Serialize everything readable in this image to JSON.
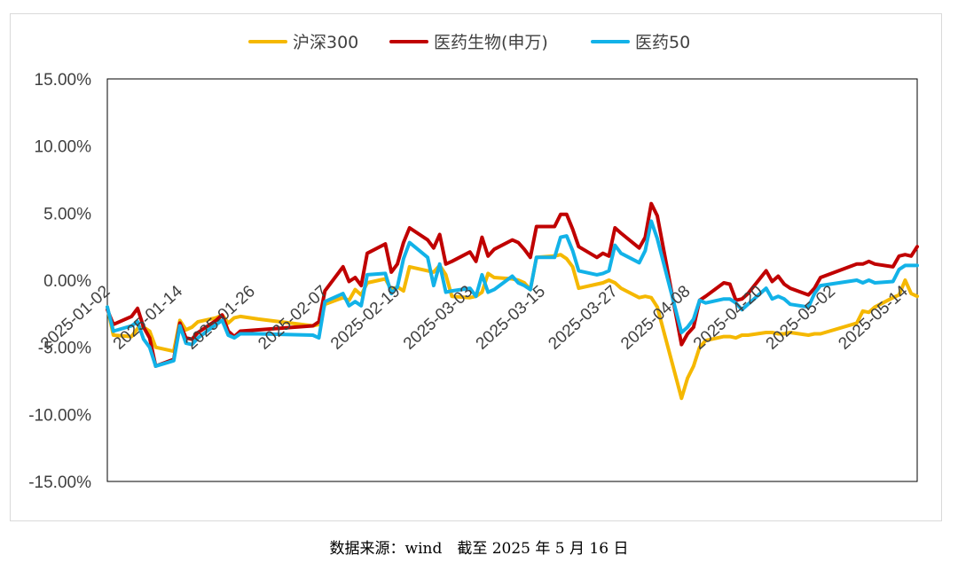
{
  "chart_data": {
    "type": "line",
    "title": "",
    "xlabel": "",
    "ylabel": "",
    "ylim": [
      -0.15,
      0.15
    ],
    "y_ticks": [
      "15.00%",
      "10.00%",
      "5.00%",
      "0.00%",
      "-5.00%",
      "-10.00%",
      "-15.00%"
    ],
    "x_ticks": [
      "2025-01-02",
      "2025-01-14",
      "2025-01-26",
      "2025-02-07",
      "2025-02-19",
      "2025-03-03",
      "2025-03-15",
      "2025-03-27",
      "2025-04-08",
      "2025-04-20",
      "2025-05-02",
      "2025-05-14"
    ],
    "x_range": [
      "2025-01-02",
      "2025-05-16"
    ],
    "grid": false,
    "legend_position": "top",
    "series": [
      {
        "name": "沪深300",
        "color": "#f5b800",
        "points": [
          [
            "2025-01-02",
            -0.02
          ],
          [
            "2025-01-03",
            -0.041
          ],
          [
            "2025-01-06",
            -0.042
          ],
          [
            "2025-01-07",
            -0.036
          ],
          [
            "2025-01-08",
            -0.035
          ],
          [
            "2025-01-09",
            -0.038
          ],
          [
            "2025-01-10",
            -0.05
          ],
          [
            "2025-01-13",
            -0.053
          ],
          [
            "2025-01-14",
            -0.03
          ],
          [
            "2025-01-15",
            -0.037
          ],
          [
            "2025-01-16",
            -0.035
          ],
          [
            "2025-01-17",
            -0.031
          ],
          [
            "2025-01-20",
            -0.028
          ],
          [
            "2025-01-21",
            -0.026
          ],
          [
            "2025-01-22",
            -0.032
          ],
          [
            "2025-01-23",
            -0.028
          ],
          [
            "2025-01-24",
            -0.027
          ],
          [
            "2025-01-27",
            -0.029
          ],
          [
            "2025-02-05",
            -0.034
          ],
          [
            "2025-02-06",
            -0.033
          ],
          [
            "2025-02-07",
            -0.018
          ],
          [
            "2025-02-10",
            -0.013
          ],
          [
            "2025-02-11",
            -0.015
          ],
          [
            "2025-02-12",
            -0.007
          ],
          [
            "2025-02-13",
            -0.011
          ],
          [
            "2025-02-14",
            -0.002
          ],
          [
            "2025-02-17",
            0.001
          ],
          [
            "2025-02-18",
            -0.007
          ],
          [
            "2025-02-19",
            -0.005
          ],
          [
            "2025-02-20",
            -0.008
          ],
          [
            "2025-02-21",
            0.01
          ],
          [
            "2025-02-24",
            0.007
          ],
          [
            "2025-02-25",
            0.006
          ],
          [
            "2025-02-26",
            0.011
          ],
          [
            "2025-02-27",
            0.004
          ],
          [
            "2025-02-28",
            -0.012
          ],
          [
            "2025-03-03",
            -0.013
          ],
          [
            "2025-03-04",
            -0.012
          ],
          [
            "2025-03-05",
            -0.009
          ],
          [
            "2025-03-06",
            0.005
          ],
          [
            "2025-03-07",
            0.002
          ],
          [
            "2025-03-10",
            0.001
          ],
          [
            "2025-03-11",
            0.0
          ],
          [
            "2025-03-12",
            -0.002
          ],
          [
            "2025-03-13",
            -0.007
          ],
          [
            "2025-03-14",
            0.017
          ],
          [
            "2025-03-17",
            0.018
          ],
          [
            "2025-03-18",
            0.019
          ],
          [
            "2025-03-19",
            0.016
          ],
          [
            "2025-03-20",
            0.01
          ],
          [
            "2025-03-21",
            -0.006
          ],
          [
            "2025-03-24",
            -0.003
          ],
          [
            "2025-03-25",
            -0.002
          ],
          [
            "2025-03-26",
            0.0
          ],
          [
            "2025-03-27",
            -0.002
          ],
          [
            "2025-03-28",
            -0.006
          ],
          [
            "2025-03-31",
            -0.013
          ],
          [
            "2025-04-01",
            -0.012
          ],
          [
            "2025-04-02",
            -0.013
          ],
          [
            "2025-04-03",
            -0.02
          ],
          [
            "2025-04-07",
            -0.088
          ],
          [
            "2025-04-08",
            -0.073
          ],
          [
            "2025-04-09",
            -0.064
          ],
          [
            "2025-04-10",
            -0.05
          ],
          [
            "2025-04-11",
            -0.045
          ],
          [
            "2025-04-14",
            -0.042
          ],
          [
            "2025-04-15",
            -0.042
          ],
          [
            "2025-04-16",
            -0.043
          ],
          [
            "2025-04-17",
            -0.041
          ],
          [
            "2025-04-18",
            -0.041
          ],
          [
            "2025-04-21",
            -0.039
          ],
          [
            "2025-04-22",
            -0.039
          ],
          [
            "2025-04-23",
            -0.04
          ],
          [
            "2025-04-24",
            -0.04
          ],
          [
            "2025-04-25",
            -0.039
          ],
          [
            "2025-04-28",
            -0.041
          ],
          [
            "2025-04-29",
            -0.04
          ],
          [
            "2025-04-30",
            -0.04
          ],
          [
            "2025-05-06",
            -0.032
          ],
          [
            "2025-05-07",
            -0.023
          ],
          [
            "2025-05-08",
            -0.024
          ],
          [
            "2025-05-09",
            -0.02
          ],
          [
            "2025-05-12",
            -0.013
          ],
          [
            "2025-05-13",
            -0.011
          ],
          [
            "2025-05-14",
            0.0
          ],
          [
            "2025-05-15",
            -0.01
          ],
          [
            "2025-05-16",
            -0.012
          ]
        ]
      },
      {
        "name": "医药生物(申万)",
        "color": "#c00000",
        "points": [
          [
            "2025-01-02",
            -0.022
          ],
          [
            "2025-01-03",
            -0.033
          ],
          [
            "2025-01-06",
            -0.027
          ],
          [
            "2025-01-07",
            -0.021
          ],
          [
            "2025-01-08",
            -0.035
          ],
          [
            "2025-01-09",
            -0.043
          ],
          [
            "2025-01-10",
            -0.064
          ],
          [
            "2025-01-13",
            -0.059
          ],
          [
            "2025-01-14",
            -0.032
          ],
          [
            "2025-01-15",
            -0.043
          ],
          [
            "2025-01-16",
            -0.044
          ],
          [
            "2025-01-17",
            -0.039
          ],
          [
            "2025-01-20",
            -0.03
          ],
          [
            "2025-01-21",
            -0.026
          ],
          [
            "2025-01-22",
            -0.038
          ],
          [
            "2025-01-23",
            -0.042
          ],
          [
            "2025-01-24",
            -0.038
          ],
          [
            "2025-01-27",
            -0.037
          ],
          [
            "2025-02-05",
            -0.034
          ],
          [
            "2025-02-06",
            -0.031
          ],
          [
            "2025-02-07",
            -0.008
          ],
          [
            "2025-02-10",
            0.01
          ],
          [
            "2025-02-11",
            -0.001
          ],
          [
            "2025-02-12",
            0.002
          ],
          [
            "2025-02-13",
            -0.004
          ],
          [
            "2025-02-14",
            0.02
          ],
          [
            "2025-02-17",
            0.027
          ],
          [
            "2025-02-18",
            0.006
          ],
          [
            "2025-02-19",
            0.012
          ],
          [
            "2025-02-20",
            0.028
          ],
          [
            "2025-02-21",
            0.039
          ],
          [
            "2025-02-24",
            0.03
          ],
          [
            "2025-02-25",
            0.024
          ],
          [
            "2025-02-26",
            0.034
          ],
          [
            "2025-02-27",
            0.012
          ],
          [
            "2025-02-28",
            0.014
          ],
          [
            "2025-03-03",
            0.021
          ],
          [
            "2025-03-04",
            0.014
          ],
          [
            "2025-03-05",
            0.032
          ],
          [
            "2025-03-06",
            0.018
          ],
          [
            "2025-03-07",
            0.023
          ],
          [
            "2025-03-10",
            0.03
          ],
          [
            "2025-03-11",
            0.028
          ],
          [
            "2025-03-12",
            0.023
          ],
          [
            "2025-03-13",
            0.017
          ],
          [
            "2025-03-14",
            0.04
          ],
          [
            "2025-03-17",
            0.04
          ],
          [
            "2025-03-18",
            0.049
          ],
          [
            "2025-03-19",
            0.049
          ],
          [
            "2025-03-20",
            0.038
          ],
          [
            "2025-03-21",
            0.025
          ],
          [
            "2025-03-24",
            0.017
          ],
          [
            "2025-03-25",
            0.02
          ],
          [
            "2025-03-26",
            0.018
          ],
          [
            "2025-03-27",
            0.039
          ],
          [
            "2025-03-28",
            0.035
          ],
          [
            "2025-03-31",
            0.024
          ],
          [
            "2025-04-01",
            0.032
          ],
          [
            "2025-04-02",
            0.057
          ],
          [
            "2025-04-03",
            0.048
          ],
          [
            "2025-04-07",
            -0.048
          ],
          [
            "2025-04-08",
            -0.04
          ],
          [
            "2025-04-09",
            -0.035
          ],
          [
            "2025-04-10",
            -0.015
          ],
          [
            "2025-04-11",
            -0.012
          ],
          [
            "2025-04-14",
            -0.002
          ],
          [
            "2025-04-15",
            -0.003
          ],
          [
            "2025-04-16",
            -0.015
          ],
          [
            "2025-04-17",
            -0.014
          ],
          [
            "2025-04-18",
            -0.01
          ],
          [
            "2025-04-21",
            0.007
          ],
          [
            "2025-04-22",
            -0.001
          ],
          [
            "2025-04-23",
            0.003
          ],
          [
            "2025-04-24",
            -0.003
          ],
          [
            "2025-04-25",
            -0.006
          ],
          [
            "2025-04-28",
            -0.011
          ],
          [
            "2025-04-29",
            -0.006
          ],
          [
            "2025-04-30",
            0.002
          ],
          [
            "2025-05-06",
            0.012
          ],
          [
            "2025-05-07",
            0.012
          ],
          [
            "2025-05-08",
            0.014
          ],
          [
            "2025-05-09",
            0.012
          ],
          [
            "2025-05-12",
            0.01
          ],
          [
            "2025-05-13",
            0.018
          ],
          [
            "2025-05-14",
            0.019
          ],
          [
            "2025-05-15",
            0.018
          ],
          [
            "2025-05-16",
            0.025
          ]
        ]
      },
      {
        "name": "医药50",
        "color": "#12b2e8",
        "points": [
          [
            "2025-01-02",
            -0.02
          ],
          [
            "2025-01-03",
            -0.038
          ],
          [
            "2025-01-06",
            -0.034
          ],
          [
            "2025-01-07",
            -0.031
          ],
          [
            "2025-01-08",
            -0.044
          ],
          [
            "2025-01-09",
            -0.05
          ],
          [
            "2025-01-10",
            -0.064
          ],
          [
            "2025-01-13",
            -0.06
          ],
          [
            "2025-01-14",
            -0.034
          ],
          [
            "2025-01-15",
            -0.047
          ],
          [
            "2025-01-16",
            -0.048
          ],
          [
            "2025-01-17",
            -0.043
          ],
          [
            "2025-01-20",
            -0.033
          ],
          [
            "2025-01-21",
            -0.03
          ],
          [
            "2025-01-22",
            -0.041
          ],
          [
            "2025-01-23",
            -0.043
          ],
          [
            "2025-01-24",
            -0.04
          ],
          [
            "2025-01-27",
            -0.04
          ],
          [
            "2025-02-05",
            -0.041
          ],
          [
            "2025-02-06",
            -0.043
          ],
          [
            "2025-02-07",
            -0.016
          ],
          [
            "2025-02-10",
            -0.01
          ],
          [
            "2025-02-11",
            -0.019
          ],
          [
            "2025-02-12",
            -0.016
          ],
          [
            "2025-02-13",
            -0.019
          ],
          [
            "2025-02-14",
            0.004
          ],
          [
            "2025-02-17",
            0.005
          ],
          [
            "2025-02-18",
            -0.01
          ],
          [
            "2025-02-19",
            -0.005
          ],
          [
            "2025-02-20",
            0.016
          ],
          [
            "2025-02-21",
            0.028
          ],
          [
            "2025-02-24",
            0.017
          ],
          [
            "2025-02-25",
            -0.004
          ],
          [
            "2025-02-26",
            0.012
          ],
          [
            "2025-02-27",
            -0.009
          ],
          [
            "2025-02-28",
            -0.008
          ],
          [
            "2025-03-03",
            -0.006
          ],
          [
            "2025-03-04",
            -0.012
          ],
          [
            "2025-03-05",
            0.004
          ],
          [
            "2025-03-06",
            -0.009
          ],
          [
            "2025-03-07",
            -0.007
          ],
          [
            "2025-03-10",
            0.003
          ],
          [
            "2025-03-11",
            -0.002
          ],
          [
            "2025-03-12",
            -0.004
          ],
          [
            "2025-03-13",
            -0.007
          ],
          [
            "2025-03-14",
            0.017
          ],
          [
            "2025-03-17",
            0.017
          ],
          [
            "2025-03-18",
            0.032
          ],
          [
            "2025-03-19",
            0.033
          ],
          [
            "2025-03-20",
            0.022
          ],
          [
            "2025-03-21",
            0.007
          ],
          [
            "2025-03-24",
            0.004
          ],
          [
            "2025-03-25",
            0.005
          ],
          [
            "2025-03-26",
            0.007
          ],
          [
            "2025-03-27",
            0.026
          ],
          [
            "2025-03-28",
            0.02
          ],
          [
            "2025-03-31",
            0.013
          ],
          [
            "2025-04-01",
            0.022
          ],
          [
            "2025-04-02",
            0.044
          ],
          [
            "2025-04-03",
            0.031
          ],
          [
            "2025-04-07",
            -0.039
          ],
          [
            "2025-04-08",
            -0.035
          ],
          [
            "2025-04-09",
            -0.029
          ],
          [
            "2025-04-10",
            -0.015
          ],
          [
            "2025-04-11",
            -0.017
          ],
          [
            "2025-04-14",
            -0.014
          ],
          [
            "2025-04-15",
            -0.014
          ],
          [
            "2025-04-16",
            -0.017
          ],
          [
            "2025-04-17",
            -0.022
          ],
          [
            "2025-04-18",
            -0.018
          ],
          [
            "2025-04-21",
            -0.006
          ],
          [
            "2025-04-22",
            -0.014
          ],
          [
            "2025-04-23",
            -0.012
          ],
          [
            "2025-04-24",
            -0.014
          ],
          [
            "2025-04-25",
            -0.018
          ],
          [
            "2025-04-28",
            -0.02
          ],
          [
            "2025-04-29",
            -0.01
          ],
          [
            "2025-04-30",
            -0.004
          ],
          [
            "2025-05-06",
            0.0
          ],
          [
            "2025-05-07",
            -0.002
          ],
          [
            "2025-05-08",
            0.0
          ],
          [
            "2025-05-09",
            -0.002
          ],
          [
            "2025-05-12",
            -0.001
          ],
          [
            "2025-05-13",
            0.008
          ],
          [
            "2025-05-14",
            0.011
          ],
          [
            "2025-05-15",
            0.011
          ],
          [
            "2025-05-16",
            0.011
          ]
        ]
      }
    ]
  },
  "footer": {
    "source": "数据来源：wind　截至 2025 年 5 月 16 日"
  }
}
